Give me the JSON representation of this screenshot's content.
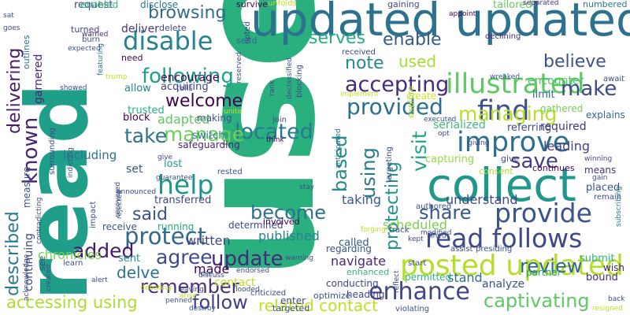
{
  "words": [
    {
      "text": "use",
      "color": "#2ab07f"
    },
    {
      "text": "read",
      "color": "#1f9e89"
    },
    {
      "text": "updated updated",
      "color": "#2c728e"
    },
    {
      "text": "collect",
      "color": "#1f978b"
    },
    {
      "text": "posted updated",
      "color": "#b5de2b"
    },
    {
      "text": "illustrated",
      "color": "#5ec962"
    },
    {
      "text": "provide",
      "color": "#3b528b"
    },
    {
      "text": "read follows",
      "color": "#3e4989"
    },
    {
      "text": "help",
      "color": "#1f968b"
    },
    {
      "text": "improve",
      "color": "#2e6e8e"
    },
    {
      "text": "find",
      "color": "#3b528b"
    },
    {
      "text": "provided",
      "color": "#2d708e"
    },
    {
      "text": "disable",
      "color": "#26828e"
    },
    {
      "text": "enhance",
      "color": "#404688"
    },
    {
      "text": "protect",
      "color": "#31688e"
    },
    {
      "text": "accepting",
      "color": "#472a7a"
    },
    {
      "text": "located",
      "color": "#2a788e"
    },
    {
      "text": "make",
      "color": "#3e4a89"
    },
    {
      "text": "update",
      "color": "#482878"
    },
    {
      "text": "following",
      "color": "#1fa187"
    },
    {
      "text": "browsing",
      "color": "#2f6c8e"
    },
    {
      "text": "manage",
      "color": "#6ece58"
    },
    {
      "text": "welcome",
      "color": "#440154"
    },
    {
      "text": "take",
      "color": "#2c718e"
    },
    {
      "text": "said",
      "color": "#3a538b"
    },
    {
      "text": "become",
      "color": "#2d718e"
    },
    {
      "text": "known",
      "color": "#482475"
    },
    {
      "text": "added",
      "color": "#48186a"
    },
    {
      "text": "agree",
      "color": "#3e4a89"
    },
    {
      "text": "remember",
      "color": "#472d7b"
    },
    {
      "text": "follow",
      "color": "#433e85"
    },
    {
      "text": "review",
      "color": "#32658e"
    },
    {
      "text": "captivating",
      "color": "#5ec962"
    },
    {
      "text": "save",
      "color": "#433e85"
    },
    {
      "text": "share",
      "color": "#39568c"
    },
    {
      "text": "managing",
      "color": "#b8de29"
    },
    {
      "text": "visit",
      "color": "#21a585"
    },
    {
      "text": "using",
      "color": "#29798e"
    },
    {
      "text": "based",
      "color": "#23898e"
    },
    {
      "text": "protecting",
      "color": "#20928c"
    },
    {
      "text": "enable",
      "color": "#365c8d"
    },
    {
      "text": "serves",
      "color": "#27ad81"
    },
    {
      "text": "note",
      "color": "#23898e"
    },
    {
      "text": "believe",
      "color": "#3b528b"
    },
    {
      "text": "used",
      "color": "#a8db34"
    },
    {
      "text": "delivering",
      "color": "#481b6d"
    },
    {
      "text": "described",
      "color": "#2a788e"
    },
    {
      "text": "accessing using",
      "color": "#addc30"
    },
    {
      "text": "related contact",
      "color": "#c2df23"
    },
    {
      "text": "delve",
      "color": "#2b748e"
    },
    {
      "text": "navigate",
      "color": "#482878"
    },
    {
      "text": "chronicles",
      "color": "#7ad151"
    },
    {
      "text": "written",
      "color": "#3f4788"
    },
    {
      "text": "published",
      "color": "#26828e"
    },
    {
      "text": "understand",
      "color": "#404688"
    },
    {
      "text": "scheduled",
      "color": "#7ad151"
    },
    {
      "text": "taking",
      "color": "#375a8c"
    },
    {
      "text": "adapted",
      "color": "#5ec962"
    },
    {
      "text": "encourage",
      "color": "#450457"
    },
    {
      "text": "garnered",
      "color": "#482677"
    },
    {
      "text": "including",
      "color": "#2c738e"
    },
    {
      "text": "continuing",
      "color": "#3e4a89"
    },
    {
      "text": "made",
      "color": "#440154"
    },
    {
      "text": "contact",
      "color": "#c2df23"
    },
    {
      "text": "stand",
      "color": "#2d718e"
    },
    {
      "text": "analyze",
      "color": "#3a538b"
    },
    {
      "text": "leading",
      "color": "#433e85"
    },
    {
      "text": "capturing",
      "color": "#95d840"
    },
    {
      "text": "serialized",
      "color": "#3dbc74"
    },
    {
      "text": "encounter",
      "color": "#52c569"
    },
    {
      "text": "required",
      "color": "#463480"
    },
    {
      "text": "limit",
      "color": "#33638d"
    },
    {
      "text": "deliver",
      "color": "#453781"
    },
    {
      "text": "switch",
      "color": "#2a778e"
    },
    {
      "text": "block",
      "color": "#440154"
    },
    {
      "text": "trusted",
      "color": "#2ab07f"
    },
    {
      "text": "allow",
      "color": "#25848e"
    },
    {
      "text": "acquiring",
      "color": "#414487"
    },
    {
      "text": "safeguarding",
      "color": "#482475"
    },
    {
      "text": "making",
      "color": "#3b528b"
    },
    {
      "text": "set",
      "color": "#365c8d"
    },
    {
      "text": "lost",
      "color": "#1f9e89"
    },
    {
      "text": "sent",
      "color": "#20928c"
    },
    {
      "text": "receive",
      "color": "#3b528b"
    },
    {
      "text": "running",
      "color": "#22a884"
    },
    {
      "text": "transferred",
      "color": "#404688"
    },
    {
      "text": "determined",
      "color": "#3e4989"
    },
    {
      "text": "involved",
      "color": "#440154"
    },
    {
      "text": "regarding",
      "color": "#38598c"
    },
    {
      "text": "called",
      "color": "#375a8c"
    },
    {
      "text": "enhanced",
      "color": "#32b67a"
    },
    {
      "text": "conducting",
      "color": "#3f4788"
    },
    {
      "text": "heading",
      "color": "#404688"
    },
    {
      "text": "enter",
      "color": "#3e4a89"
    },
    {
      "text": "optimize",
      "color": "#3b528b"
    },
    {
      "text": "targeted",
      "color": "#3b528b"
    },
    {
      "text": "permitted",
      "color": "#2fb47c"
    },
    {
      "text": "partner",
      "color": "#1f9e89"
    },
    {
      "text": "bound",
      "color": "#472c7a"
    },
    {
      "text": "submit",
      "color": "#2fb47c"
    },
    {
      "text": "wish",
      "color": "#482475"
    },
    {
      "text": "placed",
      "color": "#3b528b"
    },
    {
      "text": "means",
      "color": "#46337f"
    },
    {
      "text": "explains",
      "color": "#31688e"
    },
    {
      "text": "gathered",
      "color": "#75d054"
    },
    {
      "text": "give",
      "color": "#3e4989"
    },
    {
      "text": "continues",
      "color": "#440154"
    },
    {
      "text": "consent",
      "color": "#addc30"
    },
    {
      "text": "referring",
      "color": "#3e4a89"
    },
    {
      "text": "request",
      "color": "#3e4a89"
    },
    {
      "text": "enabled",
      "color": "#32b67a"
    },
    {
      "text": "tailored",
      "color": "#65cb5e"
    },
    {
      "text": "numbered",
      "color": "#2a788e"
    },
    {
      "text": "disclose",
      "color": "#2a768e"
    },
    {
      "text": "delete",
      "color": "#3f4788"
    },
    {
      "text": "survive",
      "color": "#440154"
    },
    {
      "text": "gaining",
      "color": "#3f4788"
    },
    {
      "text": "received",
      "color": "#3f4788"
    },
    {
      "text": "declining",
      "color": "#482878"
    },
    {
      "text": "appoint",
      "color": "#440154"
    },
    {
      "text": "separated",
      "color": "#46337f"
    },
    {
      "text": "await",
      "color": "#3e4a89"
    },
    {
      "text": "turned",
      "color": "#3f4788"
    },
    {
      "text": "warned",
      "color": "#482878"
    },
    {
      "text": "featuring",
      "color": "#2c728e"
    },
    {
      "text": "need",
      "color": "#440154"
    },
    {
      "text": "tells",
      "color": "#3f4788"
    },
    {
      "text": "create",
      "color": "#d2e21b"
    },
    {
      "text": "explore",
      "color": "#addc30"
    },
    {
      "text": "send",
      "color": "#33638d"
    },
    {
      "text": "join",
      "color": "#3e4a89"
    },
    {
      "text": "think",
      "color": "#440154"
    },
    {
      "text": "rested",
      "color": "#3b528b"
    },
    {
      "text": "give",
      "color": "#3e4989"
    },
    {
      "text": "discuss",
      "color": "#3e4a89"
    },
    {
      "text": "learn",
      "color": "#3b528b"
    },
    {
      "text": "alert",
      "color": "#3e4a89"
    },
    {
      "text": "lose",
      "color": "#3b528b"
    },
    {
      "text": "arise",
      "color": "#c2df23"
    },
    {
      "text": "destroy",
      "color": "#3b528b"
    },
    {
      "text": "criticized",
      "color": "#3e4a89"
    },
    {
      "text": "violating",
      "color": "#3b528b"
    },
    {
      "text": "resigned",
      "color": "#c2df23"
    },
    {
      "text": "back",
      "color": "#3e4a89"
    },
    {
      "text": "start",
      "color": "#3b528b"
    },
    {
      "text": "kept",
      "color": "#3e4a89"
    },
    {
      "text": "fined",
      "color": "#3b528b"
    },
    {
      "text": "assist",
      "color": "#3e4a89"
    },
    {
      "text": "presiding",
      "color": "#3b528b"
    },
    {
      "text": "remain",
      "color": "#3e4a89"
    },
    {
      "text": "subscribing",
      "color": "#2a788e"
    },
    {
      "text": "winning",
      "color": "#3e4a89"
    },
    {
      "text": "gain",
      "color": "#3b528b"
    },
    {
      "text": "giving",
      "color": "#3e4a89"
    },
    {
      "text": "executed",
      "color": "#3b528b"
    },
    {
      "text": "opt",
      "color": "#3e4a89"
    },
    {
      "text": "wreaked",
      "color": "#3b528b"
    },
    {
      "text": "outlines",
      "color": "#2a788e"
    },
    {
      "text": "burn",
      "color": "#3e4a89"
    },
    {
      "text": "expected",
      "color": "#3b528b"
    },
    {
      "text": "goes",
      "color": "#3e4a89"
    },
    {
      "text": "sat",
      "color": "#3b528b"
    },
    {
      "text": "showed",
      "color": "#3e4a89"
    },
    {
      "text": "trump",
      "color": "#c2df23"
    },
    {
      "text": "opted",
      "color": "#3e4a89"
    },
    {
      "text": "reserved",
      "color": "#3b528b"
    },
    {
      "text": "unfolds",
      "color": "#c2df23"
    },
    {
      "text": "blocking",
      "color": "#3e4a89"
    },
    {
      "text": "declassified",
      "color": "#3b528b"
    },
    {
      "text": "rank",
      "color": "#3e4a89"
    },
    {
      "text": "implement",
      "color": "#c2df23"
    },
    {
      "text": "anticipated",
      "color": "#2a788e"
    },
    {
      "text": "surrounding",
      "color": "#3e4a89"
    },
    {
      "text": "indicting",
      "color": "#3b528b"
    },
    {
      "text": "contradicting",
      "color": "#3e4a89"
    },
    {
      "text": "created",
      "color": "#3b528b"
    },
    {
      "text": "acknowledge",
      "color": "#3e4a89"
    },
    {
      "text": "measure",
      "color": "#3b528b"
    },
    {
      "text": "see",
      "color": "#3e4a89"
    },
    {
      "text": "impact",
      "color": "#3b528b"
    },
    {
      "text": "recovered",
      "color": "#3e4a89"
    },
    {
      "text": "rejected",
      "color": "#3b528b"
    },
    {
      "text": "debating",
      "color": "#c2df23"
    },
    {
      "text": "announced",
      "color": "#3e4a89"
    },
    {
      "text": "guarantee",
      "color": "#3b528b"
    },
    {
      "text": "unite",
      "color": "#c2df23"
    },
    {
      "text": "leaving",
      "color": "#3e4a89"
    },
    {
      "text": "penned",
      "color": "#3b528b"
    },
    {
      "text": "flooded",
      "color": "#3e4a89"
    },
    {
      "text": "endorsed",
      "color": "#3b528b"
    },
    {
      "text": "warning",
      "color": "#3e4a89"
    },
    {
      "text": "modified",
      "color": "#3b528b"
    },
    {
      "text": "reflect",
      "color": "#3e4a89"
    },
    {
      "text": "authored",
      "color": "#3b528b"
    },
    {
      "text": "track",
      "color": "#3e4a89"
    },
    {
      "text": "stay",
      "color": "#3b528b"
    },
    {
      "text": "forging",
      "color": "#c2df23"
    },
    {
      "text": "targeting",
      "color": "#3e4a89"
    }
  ]
}
